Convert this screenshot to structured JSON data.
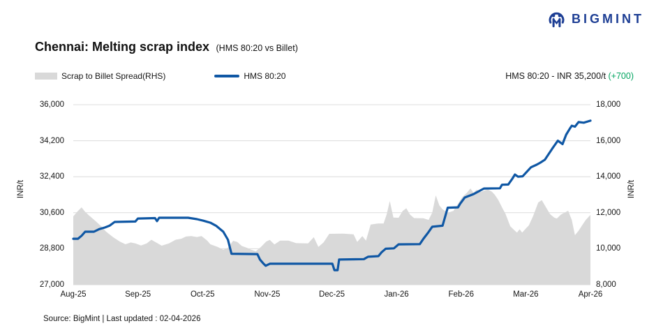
{
  "logo": {
    "text": "BIGMINT"
  },
  "header": {
    "title": "Chennai: Melting scrap index",
    "subtitle": "(HMS 80:20 vs Billet)"
  },
  "legend": {
    "area_label": "Scrap to Billet Spread(RHS)",
    "line_label": "HMS 80:20"
  },
  "annotation": {
    "prefix": "HMS 80:20 - INR 35,200/t ",
    "delta": "(+700)"
  },
  "footer": {
    "source": "Source: BigMint | Last updated : 02-04-2026"
  },
  "colors": {
    "brand_navy": "#1d3e94",
    "line_blue": "#0f57a4",
    "area_gray": "#d9d9d9",
    "grid": "#dcdcdc",
    "delta_green": "#00a45f",
    "text": "#141414"
  },
  "chart_data": {
    "type": "combo",
    "title": "Chennai: Melting scrap index (HMS 80:20 vs Billet)",
    "grid": true,
    "legend_position": "top-left",
    "x_axis": {
      "ticks": [
        "Aug-25",
        "Sep-25",
        "Oct-25",
        "Nov-25",
        "Dec-25",
        "Jan-26",
        "Feb-26",
        "Mar-26",
        "Apr-26"
      ],
      "tick_pct": [
        0,
        12.5,
        25,
        37.5,
        50,
        62.5,
        75,
        87.5,
        100
      ]
    },
    "left_axis": {
      "label": "INR/t",
      "min": 27000,
      "max": 36000,
      "tick_values": [
        36000,
        34200,
        32400,
        30600,
        28800,
        27000
      ],
      "tick_labels": [
        "36,000",
        "34,200",
        "32,400",
        "30,600",
        "28,800",
        "27,000"
      ]
    },
    "right_axis": {
      "label": "INR/t",
      "min": 8000,
      "max": 18000,
      "tick_values": [
        18000,
        16000,
        14000,
        12000,
        10000,
        8000
      ],
      "tick_labels": [
        "18,000",
        "16,000",
        "14,000",
        "12,000",
        "10,000",
        "8,000"
      ]
    },
    "latest": {
      "series": "HMS 80:20",
      "value": 35200,
      "change": 700,
      "unit": "INR/t"
    },
    "series": [
      {
        "name": "Scrap to Billet Spread(RHS)",
        "type": "area",
        "axis": "right",
        "color": "#d9d9d9",
        "points": [
          [
            0,
            11800
          ],
          [
            0.9,
            12100
          ],
          [
            1.6,
            12300
          ],
          [
            2.3,
            12050
          ],
          [
            3.0,
            11860
          ],
          [
            4.3,
            11540
          ],
          [
            5.4,
            11250
          ],
          [
            6.3,
            10960
          ],
          [
            7.7,
            10640
          ],
          [
            9.0,
            10400
          ],
          [
            10.1,
            10250
          ],
          [
            11.1,
            10350
          ],
          [
            12.0,
            10300
          ],
          [
            13.1,
            10180
          ],
          [
            14.2,
            10300
          ],
          [
            15.1,
            10500
          ],
          [
            16.0,
            10350
          ],
          [
            17.1,
            10170
          ],
          [
            18.5,
            10300
          ],
          [
            19.8,
            10500
          ],
          [
            20.9,
            10560
          ],
          [
            21.8,
            10680
          ],
          [
            22.8,
            10700
          ],
          [
            23.9,
            10650
          ],
          [
            24.8,
            10700
          ],
          [
            25.9,
            10450
          ],
          [
            26.5,
            10250
          ],
          [
            27.9,
            10100
          ],
          [
            29.0,
            9940
          ],
          [
            29.9,
            10050
          ],
          [
            30.9,
            10440
          ],
          [
            31.7,
            10380
          ],
          [
            32.6,
            10150
          ],
          [
            33.6,
            10050
          ],
          [
            34.4,
            9950
          ],
          [
            35.3,
            9860
          ],
          [
            36.3,
            10100
          ],
          [
            37.3,
            10400
          ],
          [
            38.0,
            10490
          ],
          [
            38.9,
            10240
          ],
          [
            40.0,
            10450
          ],
          [
            41.6,
            10450
          ],
          [
            43.1,
            10310
          ],
          [
            45.4,
            10300
          ],
          [
            46.5,
            10640
          ],
          [
            47.4,
            10100
          ],
          [
            48.4,
            10350
          ],
          [
            49.5,
            10830
          ],
          [
            52.2,
            10840
          ],
          [
            54.2,
            10800
          ],
          [
            54.9,
            10380
          ],
          [
            55.9,
            10700
          ],
          [
            56.6,
            10450
          ],
          [
            57.5,
            11340
          ],
          [
            58.9,
            11400
          ],
          [
            60.0,
            11400
          ],
          [
            60.6,
            11900
          ],
          [
            61.2,
            12650
          ],
          [
            61.9,
            11730
          ],
          [
            62.9,
            11720
          ],
          [
            63.7,
            12100
          ],
          [
            64.4,
            12250
          ],
          [
            65.1,
            11900
          ],
          [
            65.9,
            11700
          ],
          [
            67.7,
            11690
          ],
          [
            68.7,
            11600
          ],
          [
            69.4,
            12000
          ],
          [
            70.1,
            12960
          ],
          [
            70.8,
            12400
          ],
          [
            71.4,
            12190
          ],
          [
            72.4,
            12000
          ],
          [
            73.5,
            12100
          ],
          [
            74.4,
            12500
          ],
          [
            75.3,
            12900
          ],
          [
            76.1,
            13100
          ],
          [
            76.8,
            13350
          ],
          [
            77.4,
            13100
          ],
          [
            78.0,
            13280
          ],
          [
            78.8,
            13150
          ],
          [
            79.6,
            13250
          ],
          [
            80.2,
            13280
          ],
          [
            80.9,
            13180
          ],
          [
            81.5,
            13000
          ],
          [
            82.2,
            12700
          ],
          [
            82.9,
            12300
          ],
          [
            83.6,
            11920
          ],
          [
            84.5,
            11250
          ],
          [
            85.2,
            11050
          ],
          [
            85.8,
            10900
          ],
          [
            86.3,
            11080
          ],
          [
            86.8,
            10900
          ],
          [
            87.5,
            11120
          ],
          [
            88.1,
            11300
          ],
          [
            88.9,
            11800
          ],
          [
            89.9,
            12570
          ],
          [
            90.6,
            12700
          ],
          [
            91.2,
            12400
          ],
          [
            92.2,
            11920
          ],
          [
            93.0,
            11730
          ],
          [
            93.5,
            11680
          ],
          [
            94.3,
            11900
          ],
          [
            95.1,
            12020
          ],
          [
            95.7,
            12110
          ],
          [
            96.4,
            11600
          ],
          [
            97.0,
            10750
          ],
          [
            97.7,
            11000
          ],
          [
            98.5,
            11350
          ],
          [
            99.1,
            11600
          ],
          [
            100,
            11880
          ]
        ]
      },
      {
        "name": "HMS 80:20",
        "type": "line",
        "axis": "left",
        "color": "#0f57a4",
        "points": [
          [
            0,
            29300
          ],
          [
            0.9,
            29300
          ],
          [
            1.6,
            29450
          ],
          [
            2.3,
            29650
          ],
          [
            4.0,
            29650
          ],
          [
            5.0,
            29780
          ],
          [
            6.1,
            29860
          ],
          [
            7.0,
            29950
          ],
          [
            8.0,
            30140
          ],
          [
            12.0,
            30160
          ],
          [
            12.5,
            30310
          ],
          [
            15.8,
            30330
          ],
          [
            16.2,
            30180
          ],
          [
            16.6,
            30350
          ],
          [
            22.2,
            30350
          ],
          [
            23.9,
            30280
          ],
          [
            25.2,
            30200
          ],
          [
            26.5,
            30100
          ],
          [
            27.6,
            29950
          ],
          [
            29.0,
            29650
          ],
          [
            29.9,
            29250
          ],
          [
            30.6,
            28550
          ],
          [
            35.6,
            28530
          ],
          [
            36.1,
            28260
          ],
          [
            36.8,
            28050
          ],
          [
            37.2,
            27950
          ],
          [
            38.0,
            28050
          ],
          [
            50.1,
            28050
          ],
          [
            50.5,
            27730
          ],
          [
            51.1,
            27730
          ],
          [
            51.4,
            28260
          ],
          [
            56.2,
            28280
          ],
          [
            57.0,
            28400
          ],
          [
            59.0,
            28430
          ],
          [
            59.6,
            28620
          ],
          [
            60.4,
            28800
          ],
          [
            62.0,
            28820
          ],
          [
            62.9,
            29020
          ],
          [
            67.0,
            29030
          ],
          [
            67.7,
            29300
          ],
          [
            68.6,
            29600
          ],
          [
            69.4,
            29900
          ],
          [
            71.4,
            29950
          ],
          [
            72.4,
            30850
          ],
          [
            74.4,
            30870
          ],
          [
            74.8,
            31050
          ],
          [
            75.7,
            31360
          ],
          [
            77.4,
            31530
          ],
          [
            79.4,
            31810
          ],
          [
            82.5,
            31820
          ],
          [
            82.9,
            32000
          ],
          [
            84.1,
            32010
          ],
          [
            84.9,
            32300
          ],
          [
            85.4,
            32510
          ],
          [
            86.0,
            32400
          ],
          [
            86.9,
            32420
          ],
          [
            87.9,
            32700
          ],
          [
            88.5,
            32870
          ],
          [
            89.6,
            33000
          ],
          [
            90.3,
            33100
          ],
          [
            91.2,
            33250
          ],
          [
            92.6,
            33800
          ],
          [
            93.7,
            34200
          ],
          [
            94.6,
            34030
          ],
          [
            95.3,
            34500
          ],
          [
            96.0,
            34800
          ],
          [
            96.4,
            34950
          ],
          [
            97.0,
            34900
          ],
          [
            97.7,
            35130
          ],
          [
            98.7,
            35100
          ],
          [
            100,
            35200
          ]
        ]
      }
    ]
  }
}
